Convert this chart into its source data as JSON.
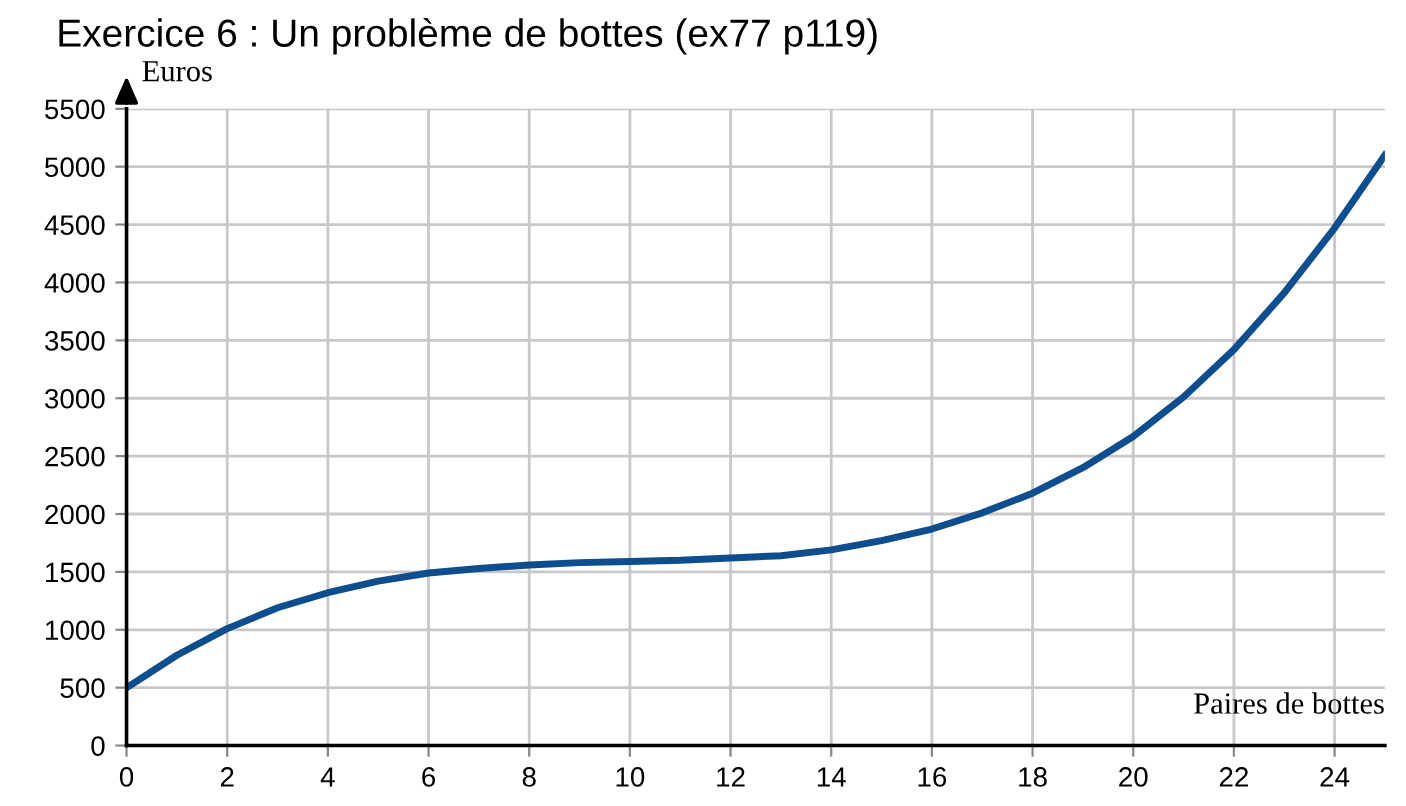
{
  "chart_data": {
    "type": "line",
    "title": "Exercice 6 : Un problème de bottes (ex77 p119)",
    "xlabel": "Paires de bottes",
    "ylabel": "Euros",
    "x": [
      0,
      1,
      2,
      3,
      4,
      5,
      6,
      7,
      8,
      9,
      10,
      11,
      12,
      13,
      14,
      15,
      16,
      17,
      18,
      19,
      20,
      21,
      22,
      23,
      24,
      25
    ],
    "series": [
      {
        "color": "#0e4d8e",
        "values": [
          500,
          780,
          1010,
          1190,
          1320,
          1420,
          1490,
          1530,
          1560,
          1580,
          1590,
          1600,
          1620,
          1640,
          1690,
          1770,
          1870,
          2010,
          2180,
          2400,
          2670,
          3010,
          3420,
          3910,
          4470,
          5100
        ]
      }
    ],
    "xlim": [
      0,
      25
    ],
    "xticks": [
      0,
      2,
      4,
      6,
      8,
      10,
      12,
      14,
      16,
      18,
      20,
      22,
      24
    ],
    "ylim": [
      0,
      5500
    ],
    "yticks": [
      0,
      500,
      1000,
      1500,
      2000,
      2500,
      3000,
      3500,
      4000,
      4500,
      5000,
      5500
    ],
    "grid": true,
    "legend": false,
    "marker": "none",
    "line_style": "solid"
  }
}
